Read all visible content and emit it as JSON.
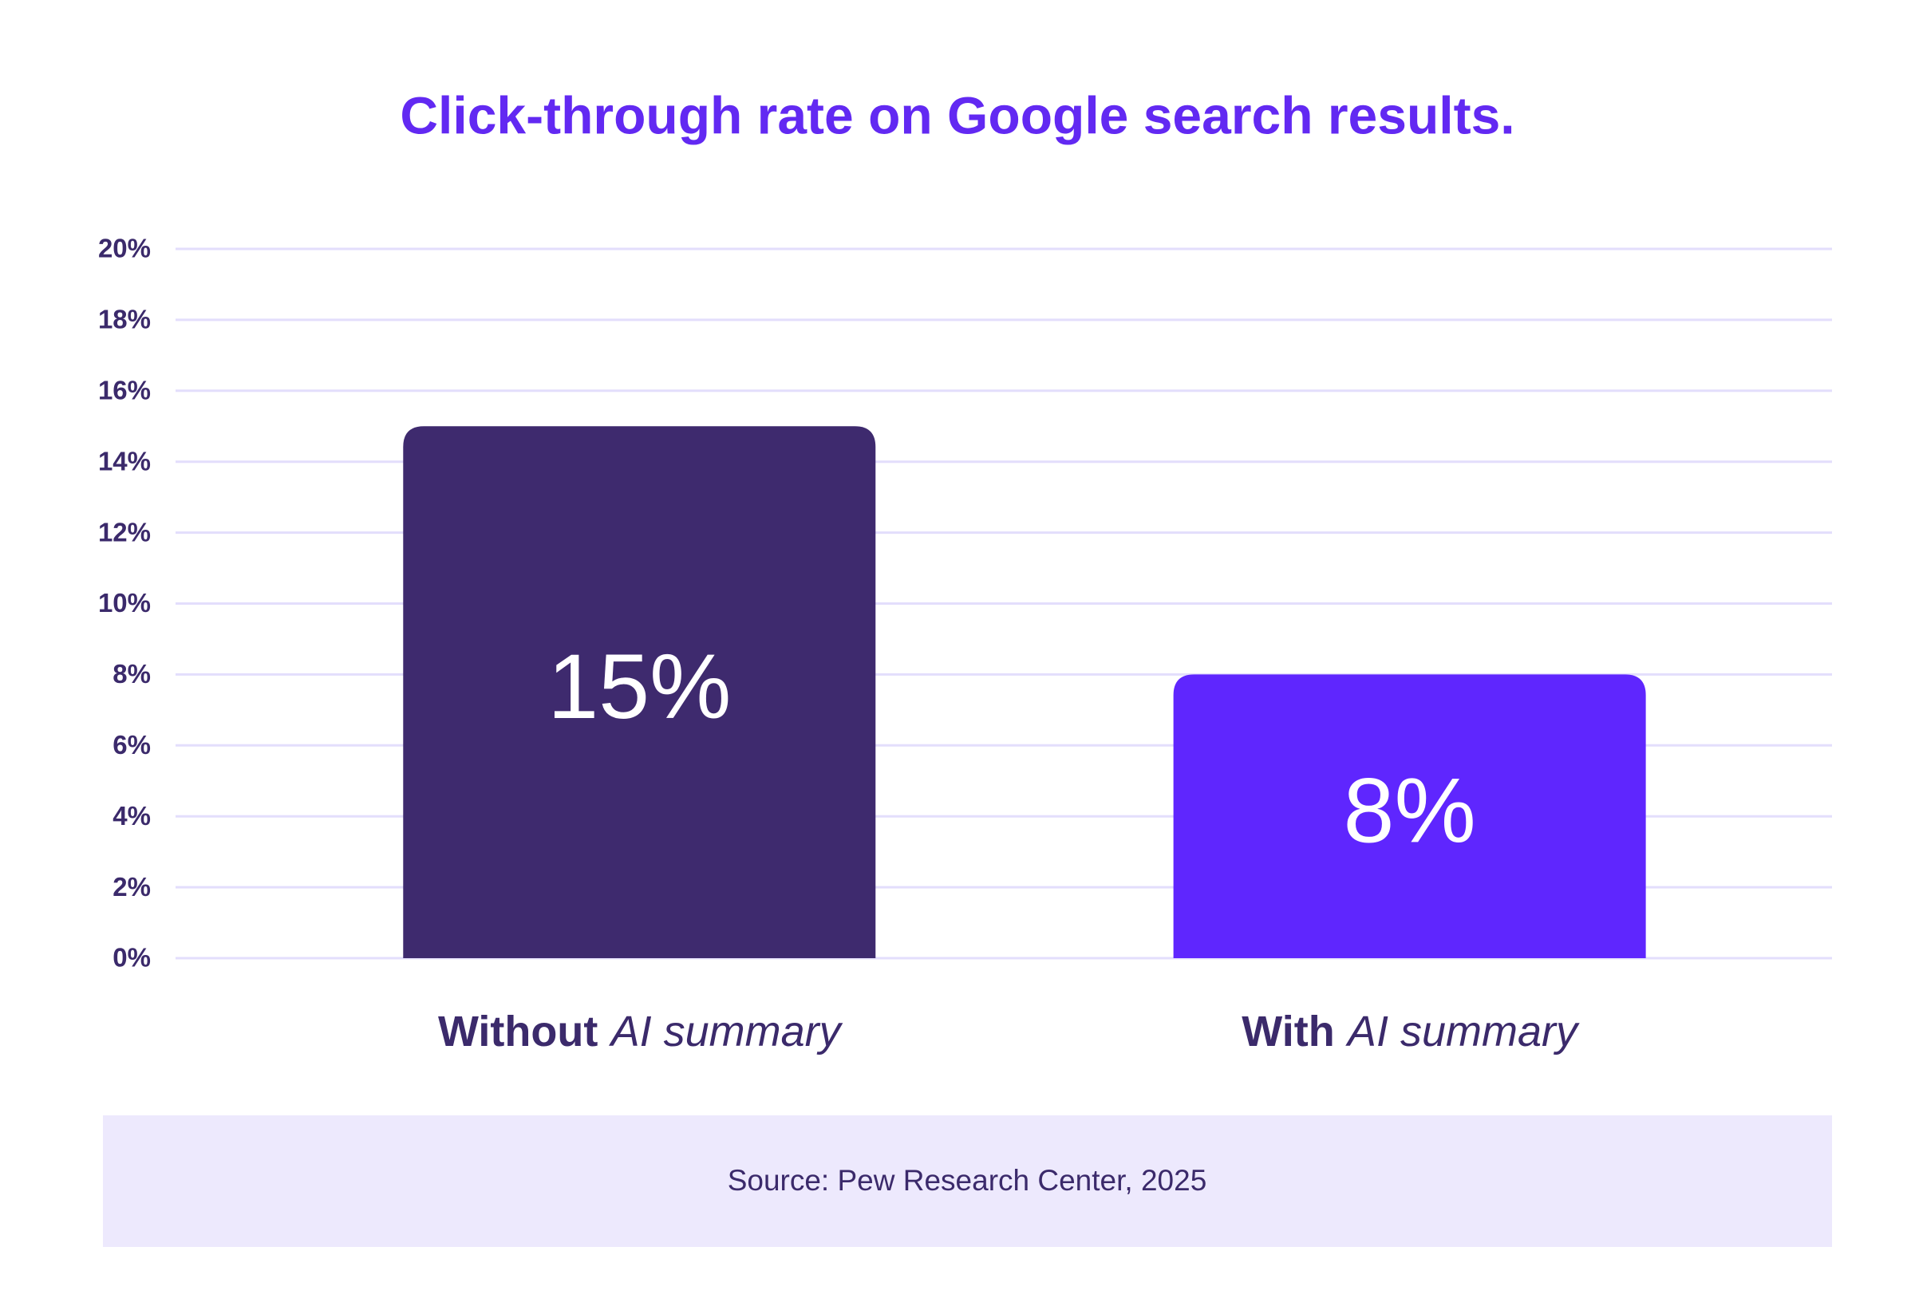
{
  "chart_data": {
    "type": "bar",
    "title": "Click-through rate on Google search results.",
    "categories": [
      [
        "Without",
        "AI summary"
      ],
      [
        "With",
        "AI summary"
      ]
    ],
    "values": [
      15,
      8
    ],
    "value_labels": [
      "15%",
      "8%"
    ],
    "colors": [
      "#3e2a6e",
      "#5f26fe"
    ],
    "ylim": [
      0,
      20
    ],
    "yticks": [
      {
        "value": 0,
        "label": "0%"
      },
      {
        "value": 2,
        "label": "2%"
      },
      {
        "value": 4,
        "label": "4%"
      },
      {
        "value": 6,
        "label": "6%"
      },
      {
        "value": 8,
        "label": "8%"
      },
      {
        "value": 10,
        "label": "10%"
      },
      {
        "value": 12,
        "label": "12%"
      },
      {
        "value": 14,
        "label": "14%"
      },
      {
        "value": 16,
        "label": "16%"
      },
      {
        "value": 18,
        "label": "18%"
      },
      {
        "value": 20,
        "label": "20%"
      }
    ],
    "grid": true,
    "source": "Source: Pew Research Center, 2025"
  }
}
